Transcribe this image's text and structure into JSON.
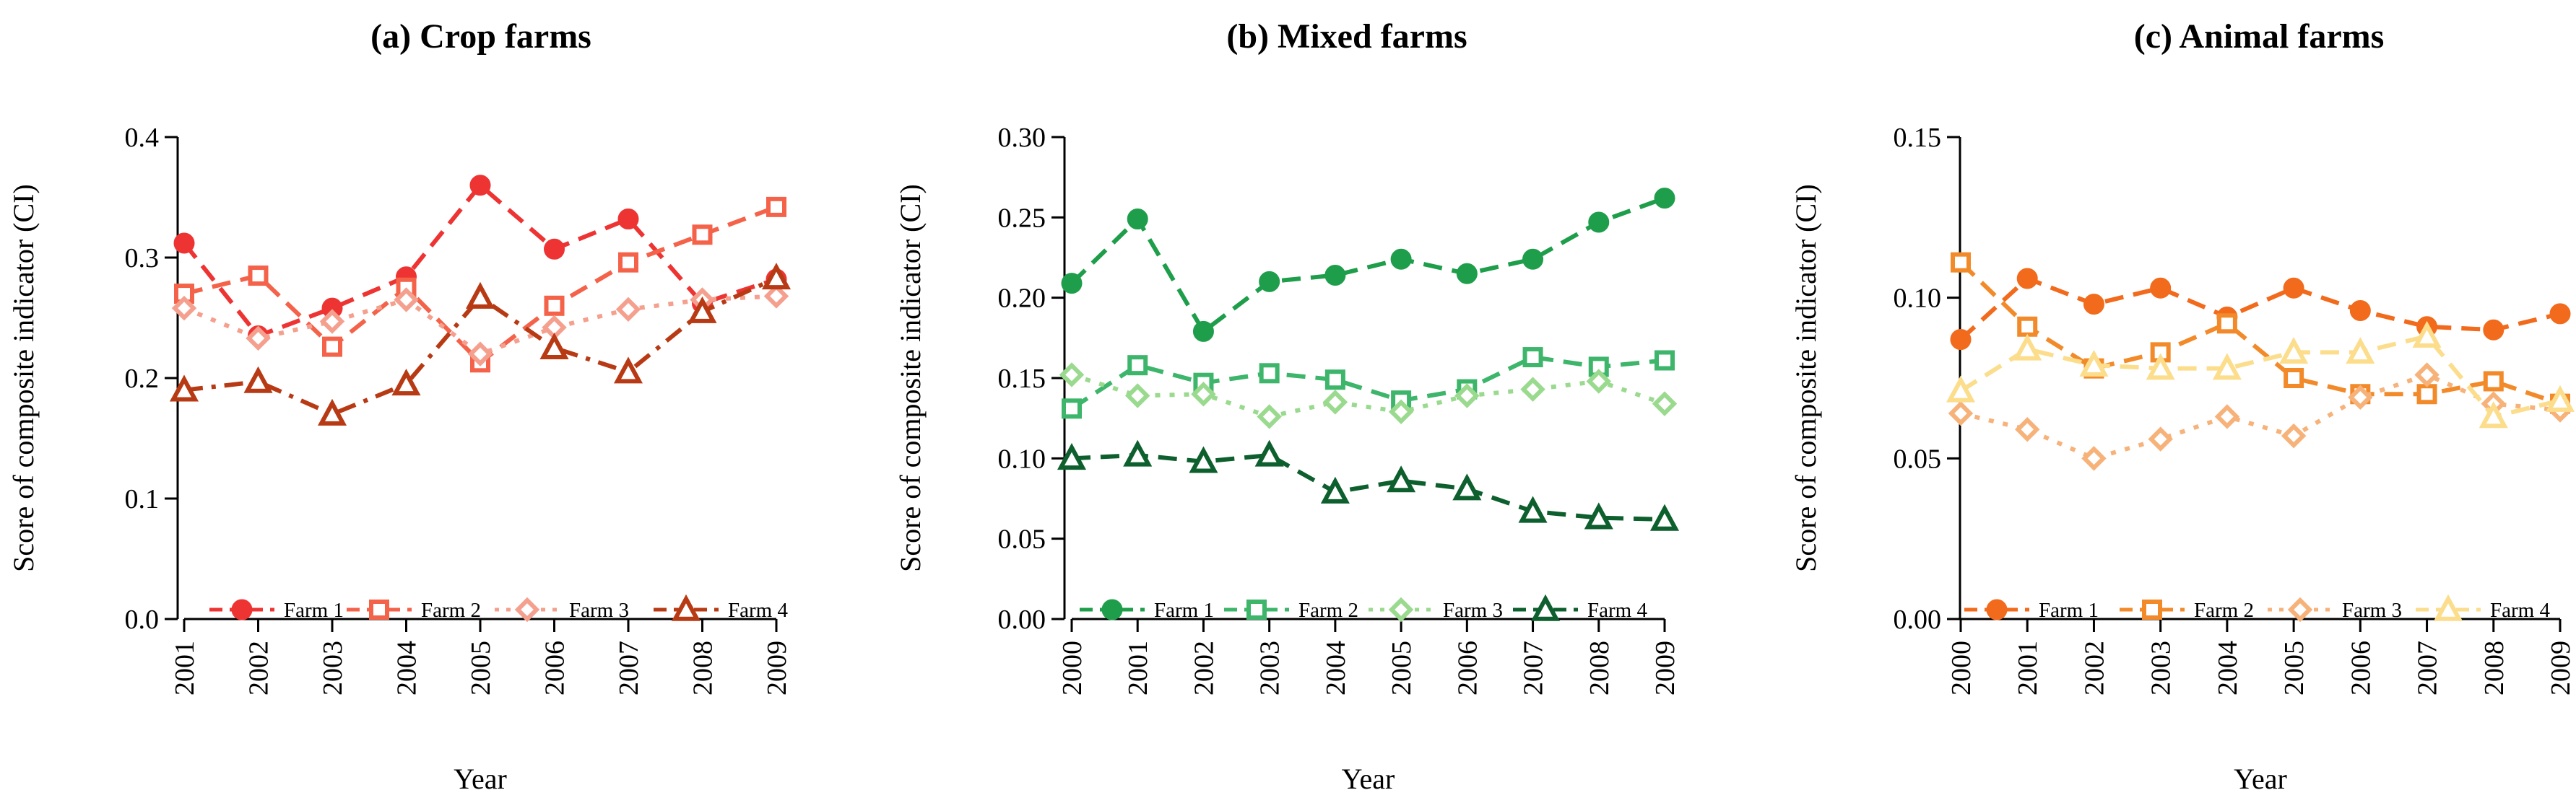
{
  "chart_data": [
    {
      "type": "line",
      "title": "(a) Crop farms",
      "xlabel": "Year",
      "ylabel": "Score of composite indicator (CI)",
      "x": [
        "2001",
        "2002",
        "2003",
        "2004",
        "2005",
        "2006",
        "2007",
        "2008",
        "2009"
      ],
      "ylim": [
        0,
        0.4
      ],
      "yticks": [
        "0.0",
        "0.1",
        "0.2",
        "0.3",
        "0.4"
      ],
      "grid": false,
      "legend_position": "bottom",
      "series": [
        {
          "name": "Farm 1",
          "color": "#EE3333",
          "marker": "circle-filled",
          "dash": "dashed",
          "values": [
            0.312,
            0.235,
            0.258,
            0.284,
            0.36,
            0.307,
            0.332,
            0.262,
            0.282
          ]
        },
        {
          "name": "Farm 2",
          "color": "#F4624A",
          "marker": "square-open",
          "dash": "dashed",
          "values": [
            0.27,
            0.285,
            0.226,
            0.275,
            0.213,
            0.26,
            0.296,
            0.319,
            0.342
          ]
        },
        {
          "name": "Farm 3",
          "color": "#F5A08E",
          "marker": "diamond-open",
          "dash": "dotted",
          "values": [
            0.258,
            0.233,
            0.247,
            0.265,
            0.22,
            0.242,
            0.257,
            0.265,
            0.268
          ]
        },
        {
          "name": "Farm 4",
          "color": "#B83A14",
          "marker": "triangle-open",
          "dash": "dashdot",
          "values": [
            0.19,
            0.197,
            0.17,
            0.195,
            0.267,
            0.225,
            0.205,
            0.255,
            0.283
          ]
        }
      ]
    },
    {
      "type": "line",
      "title": "(b) Mixed farms",
      "xlabel": "Year",
      "ylabel": "Score of composite indicator (CI)",
      "x": [
        "2000",
        "2001",
        "2002",
        "2003",
        "2004",
        "2005",
        "2006",
        "2007",
        "2008",
        "2009"
      ],
      "ylim": [
        0,
        0.3
      ],
      "yticks": [
        "0.00",
        "0.05",
        "0.10",
        "0.15",
        "0.20",
        "0.25",
        "0.30"
      ],
      "grid": false,
      "legend_position": "bottom",
      "series": [
        {
          "name": "Farm 1",
          "color": "#1E9E4A",
          "marker": "circle-filled",
          "dash": "dashed",
          "values": [
            0.209,
            0.249,
            0.179,
            0.21,
            0.214,
            0.224,
            0.215,
            0.224,
            0.247,
            0.262
          ]
        },
        {
          "name": "Farm 2",
          "color": "#3DB56A",
          "marker": "square-open",
          "dash": "dashed",
          "values": [
            0.131,
            0.158,
            0.147,
            0.153,
            0.149,
            0.136,
            0.143,
            0.163,
            0.157,
            0.161
          ]
        },
        {
          "name": "Farm 3",
          "color": "#9ADA8E",
          "marker": "diamond-open",
          "dash": "dotted",
          "values": [
            0.152,
            0.139,
            0.14,
            0.126,
            0.135,
            0.129,
            0.139,
            0.143,
            0.148,
            0.134
          ]
        },
        {
          "name": "Farm 4",
          "color": "#0E5F2E",
          "marker": "triangle-open",
          "dash": "dashed",
          "values": [
            0.1,
            0.102,
            0.098,
            0.102,
            0.079,
            0.086,
            0.081,
            0.067,
            0.063,
            0.062
          ]
        }
      ]
    },
    {
      "type": "line",
      "title": "(c) Animal farms",
      "xlabel": "Year",
      "ylabel": "Score of composite indicator (CI)",
      "x": [
        "2000",
        "2001",
        "2002",
        "2003",
        "2004",
        "2005",
        "2006",
        "2007",
        "2008",
        "2009"
      ],
      "ylim": [
        0,
        0.15
      ],
      "yticks": [
        "0.00",
        "0.05",
        "0.10",
        "0.15"
      ],
      "grid": false,
      "legend_position": "bottom",
      "series": [
        {
          "name": "Farm 1",
          "color": "#F26A1B",
          "marker": "circle-filled",
          "dash": "dashed",
          "values": [
            0.087,
            0.106,
            0.098,
            0.103,
            0.094,
            0.103,
            0.096,
            0.091,
            0.09,
            0.095
          ]
        },
        {
          "name": "Farm 2",
          "color": "#F28A2A",
          "marker": "square-open",
          "dash": "dashed",
          "values": [
            0.111,
            0.091,
            0.078,
            0.083,
            0.092,
            0.075,
            0.07,
            0.07,
            0.074,
            0.067
          ]
        },
        {
          "name": "Farm 3",
          "color": "#F7B27A",
          "marker": "diamond-open",
          "dash": "dotted",
          "values": [
            0.064,
            0.059,
            0.05,
            0.056,
            0.063,
            0.057,
            0.069,
            0.076,
            0.067,
            0.065
          ]
        },
        {
          "name": "Farm 4",
          "color": "#FBDD8C",
          "marker": "triangle-open",
          "dash": "dashed",
          "values": [
            0.071,
            0.084,
            0.079,
            0.078,
            0.078,
            0.083,
            0.083,
            0.088,
            0.063,
            0.068
          ]
        }
      ]
    }
  ]
}
